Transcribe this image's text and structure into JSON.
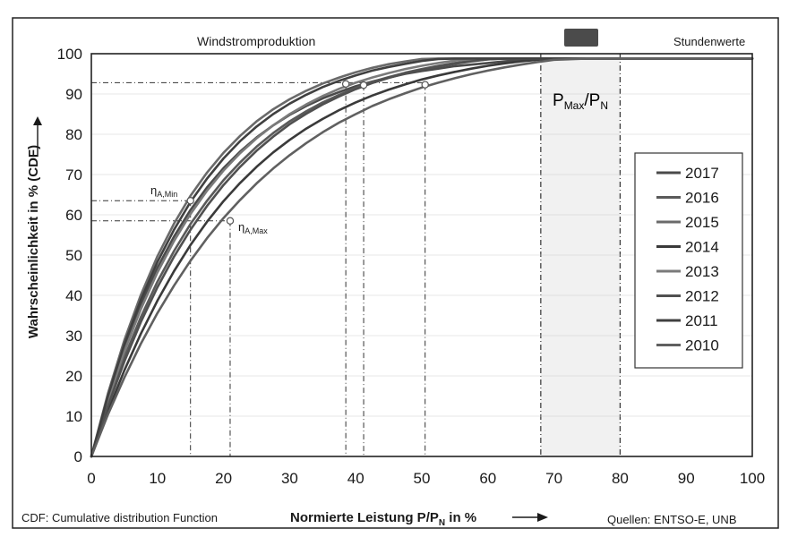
{
  "chart_data": {
    "type": "line",
    "title_left": "Windstromproduktion",
    "title_right": "Stundenwerte",
    "xlabel_main": "Normierte Leistung P/P",
    "xlabel_sub": "N",
    "xlabel_tail": " in %",
    "ylabel": "Wahrscheinlichkeit in % (CDF)",
    "footnote_left": "CDF: Cumulative distribution Function",
    "footnote_right": "Quellen: ENTSO-E, UNB",
    "xlim": [
      0,
      100
    ],
    "ylim": [
      0,
      100
    ],
    "xticks": [
      "0",
      "10",
      "20",
      "30",
      "40",
      "50",
      "60",
      "70",
      "80",
      "90",
      "100"
    ],
    "yticks": [
      "0",
      "10",
      "20",
      "30",
      "40",
      "50",
      "60",
      "70",
      "80",
      "90",
      "100"
    ],
    "grid": true,
    "legend_position": "right",
    "x": [
      0,
      2.5,
      5,
      7.5,
      10,
      12.5,
      15,
      17.5,
      20,
      22.5,
      25,
      27.5,
      30,
      32.5,
      35,
      37.5,
      40,
      42.5,
      45,
      47.5,
      50,
      52.5,
      55,
      57.5,
      60,
      62.5,
      65,
      67.5,
      70,
      75,
      80,
      85,
      90,
      95,
      100
    ],
    "series": [
      {
        "name": "2017",
        "color": "#4a4a4a",
        "values": [
          0,
          14.6,
          27.1,
          37.8,
          46.9,
          54.6,
          61.2,
          66.8,
          71.6,
          75.7,
          79.2,
          82.2,
          84.8,
          87.0,
          88.9,
          90.5,
          91.9,
          93.1,
          94.1,
          95.0,
          95.7,
          96.3,
          96.9,
          97.3,
          97.7,
          98.1,
          98.4,
          98.6,
          98.8,
          98.8,
          98.8,
          98.8,
          98.8,
          98.8,
          98.8
        ]
      },
      {
        "name": "2016",
        "color": "#5a5a5a",
        "values": [
          0,
          13.1,
          24.6,
          34.6,
          43.4,
          51.0,
          57.7,
          63.5,
          68.6,
          73.0,
          76.9,
          80.3,
          83.2,
          85.7,
          87.9,
          89.8,
          91.5,
          93.0,
          94.2,
          95.3,
          96.2,
          97.0,
          97.7,
          98.2,
          98.6,
          98.8,
          98.8,
          98.8,
          98.8,
          98.8,
          98.8,
          98.8,
          98.8,
          98.8,
          98.8
        ]
      },
      {
        "name": "2015",
        "color": "#6a6a6a",
        "values": [
          0,
          15.6,
          28.9,
          40.1,
          49.7,
          57.8,
          64.7,
          70.5,
          75.4,
          79.6,
          83.2,
          86.2,
          88.7,
          90.8,
          92.6,
          94.1,
          95.4,
          96.5,
          97.4,
          98.1,
          98.7,
          98.8,
          98.8,
          98.8,
          98.8,
          98.8,
          98.8,
          98.8,
          98.8,
          98.8,
          98.8,
          98.8,
          98.8,
          98.8,
          98.8
        ]
      },
      {
        "name": "2014",
        "color": "#3a3a3a",
        "values": [
          0,
          11.2,
          21.4,
          30.5,
          38.7,
          46.0,
          52.5,
          58.3,
          63.4,
          67.9,
          71.9,
          75.5,
          78.6,
          81.4,
          83.8,
          86.0,
          87.9,
          89.6,
          91.1,
          92.4,
          93.6,
          94.6,
          95.5,
          96.3,
          97.0,
          97.6,
          98.1,
          98.5,
          98.8,
          98.8,
          98.8,
          98.8,
          98.8,
          98.8,
          98.8
        ]
      },
      {
        "name": "2013",
        "color": "#7a7a7a",
        "values": [
          0,
          14.0,
          26.1,
          36.6,
          45.7,
          53.5,
          60.2,
          66.0,
          71.0,
          75.3,
          79.0,
          82.2,
          85.0,
          87.4,
          89.5,
          91.3,
          92.8,
          94.1,
          95.2,
          96.2,
          97.0,
          97.7,
          98.3,
          98.7,
          98.8,
          98.8,
          98.8,
          98.8,
          98.8,
          98.8,
          98.8,
          98.8,
          98.8,
          98.8,
          98.8
        ]
      },
      {
        "name": "2012",
        "color": "#505050",
        "values": [
          0,
          12.5,
          23.6,
          33.4,
          42.0,
          49.6,
          56.3,
          62.2,
          67.4,
          71.9,
          75.9,
          79.4,
          82.5,
          85.1,
          87.4,
          89.4,
          91.2,
          92.7,
          94.0,
          95.1,
          96.0,
          96.8,
          97.5,
          98.1,
          98.6,
          98.8,
          98.8,
          98.8,
          98.8,
          98.8,
          98.8,
          98.8,
          98.8,
          98.8,
          98.8
        ]
      },
      {
        "name": "2011",
        "color": "#404040",
        "values": [
          0,
          15.0,
          27.9,
          38.9,
          48.3,
          56.3,
          63.2,
          69.0,
          74.0,
          78.3,
          81.9,
          85.0,
          87.6,
          89.8,
          91.7,
          93.3,
          94.6,
          95.8,
          96.7,
          97.5,
          98.2,
          98.7,
          98.8,
          98.8,
          98.8,
          98.8,
          98.8,
          98.8,
          98.8,
          98.8,
          98.8,
          98.8,
          98.8,
          98.8,
          98.8
        ]
      },
      {
        "name": "2010",
        "color": "#606060",
        "values": [
          0,
          10.4,
          19.6,
          28.0,
          35.6,
          42.4,
          48.6,
          54.2,
          59.2,
          63.7,
          67.8,
          71.5,
          74.8,
          77.8,
          80.5,
          82.9,
          85.0,
          87.0,
          88.7,
          90.2,
          91.6,
          92.8,
          93.9,
          94.9,
          95.8,
          96.6,
          97.3,
          97.9,
          98.5,
          98.8,
          98.8,
          98.8,
          98.8,
          98.8,
          98.8
        ]
      }
    ],
    "markers": [
      {
        "x": 15,
        "y": 63.5
      },
      {
        "x": 21,
        "y": 58.5
      },
      {
        "x": 38.5,
        "y": 92.5
      },
      {
        "x": 41.2,
        "y": 92.2
      },
      {
        "x": 50.5,
        "y": 92.3
      }
    ],
    "annotations": {
      "eta_min": "η",
      "eta_min_sub": "A,Min",
      "eta_max": "η",
      "eta_max_sub": "A,Max",
      "pmax_main": "P",
      "pmax_sub1": "Max",
      "pmax_mid": "/P",
      "pmax_sub2": "N"
    },
    "guides": {
      "vertical_x": [
        15,
        21,
        38.5,
        41.2,
        50.5
      ],
      "horizontal_y": [
        63.5,
        58.5,
        92.8
      ],
      "band_x": [
        68,
        80
      ]
    }
  }
}
